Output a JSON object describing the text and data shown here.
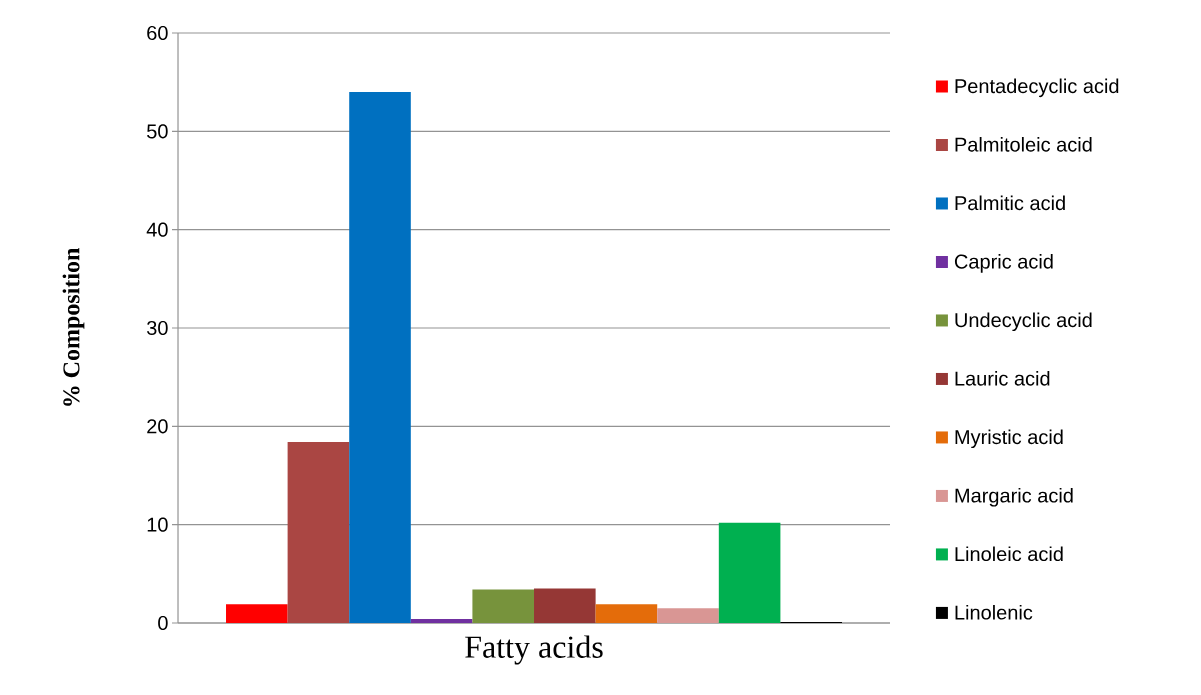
{
  "chart_data": {
    "type": "bar",
    "xlabel": "Fatty acids",
    "ylabel": "% Composition",
    "categories": [
      null
    ],
    "series": [
      {
        "name": "Pentadecyclic acid",
        "color": "#ff0000",
        "values": [
          1.9
        ]
      },
      {
        "name": "Palmitoleic acid",
        "color": "#aa4643",
        "values": [
          18.4
        ]
      },
      {
        "name": "Palmitic acid",
        "color": "#0070c0",
        "values": [
          54
        ]
      },
      {
        "name": "Capric acid",
        "color": "#7030a0",
        "values": [
          0.4
        ]
      },
      {
        "name": "Undecyclic acid",
        "color": "#77933c",
        "values": [
          3.4
        ]
      },
      {
        "name": "Lauric acid",
        "color": "#953735",
        "values": [
          3.5
        ]
      },
      {
        "name": "Myristic acid",
        "color": "#e46c0a",
        "values": [
          1.9
        ]
      },
      {
        "name": "Margaric acid",
        "color": "#d99694",
        "values": [
          1.5
        ]
      },
      {
        "name": "Linoleic acid",
        "color": "#00b050",
        "values": [
          10.2
        ]
      },
      {
        "name": "Linolenic",
        "color": "#000000",
        "values": [
          0.1
        ]
      }
    ],
    "ylim": [
      0,
      60
    ],
    "yticks": [
      0,
      10,
      20,
      30,
      40,
      50,
      60
    ],
    "grid": "y",
    "legend": "right",
    "tick_labels": "y"
  }
}
